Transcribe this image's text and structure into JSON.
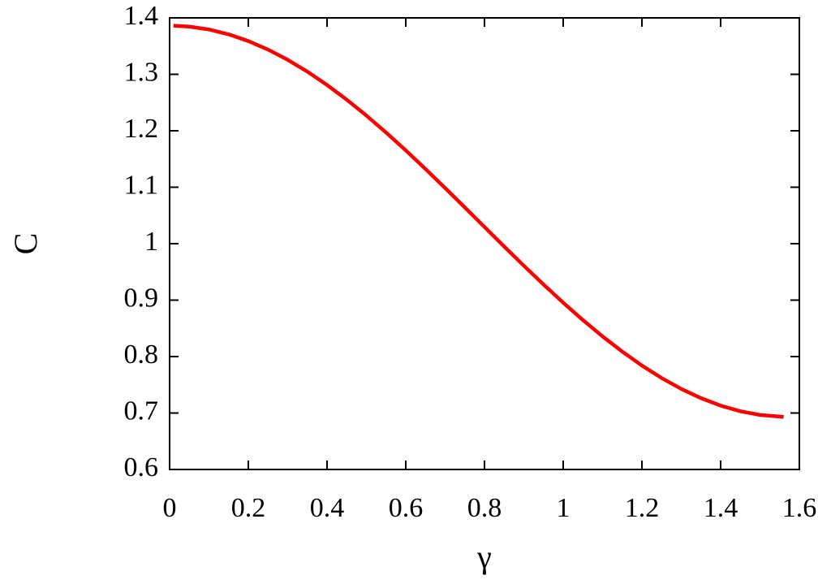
{
  "chart_data": {
    "type": "line",
    "x_label": "γ",
    "y_label": "C",
    "x": [
      0.01,
      0.05,
      0.1,
      0.15,
      0.2,
      0.25,
      0.3,
      0.35,
      0.4,
      0.45,
      0.5,
      0.55,
      0.6,
      0.65,
      0.7,
      0.75,
      0.8,
      0.85,
      0.9,
      0.95,
      1.0,
      1.05,
      1.1,
      1.15,
      1.2,
      1.25,
      1.3,
      1.35,
      1.4,
      1.45,
      1.5,
      1.56
    ],
    "series": [
      {
        "color": "#ff0000",
        "values": [
          1.3862,
          1.3845,
          1.3794,
          1.3708,
          1.3589,
          1.3438,
          1.3257,
          1.3048,
          1.2811,
          1.2551,
          1.2269,
          1.1969,
          1.1653,
          1.1324,
          1.0986,
          1.0642,
          1.0296,
          0.995,
          0.9609,
          0.9277,
          0.8955,
          0.8647,
          0.8357,
          0.8088,
          0.7841,
          0.762,
          0.7427,
          0.7264,
          0.7131,
          0.7032,
          0.6966,
          0.6932
        ]
      }
    ],
    "xlim": [
      0,
      1.6
    ],
    "xticks": [
      0,
      0.2,
      0.4,
      0.6,
      0.8,
      1,
      1.2,
      1.4,
      1.6
    ],
    "ylim": [
      0.6,
      1.4
    ],
    "yticks": [
      0.6,
      0.7,
      0.8,
      0.9,
      1,
      1.1,
      1.2,
      1.3,
      1.4
    ],
    "grid": false
  }
}
